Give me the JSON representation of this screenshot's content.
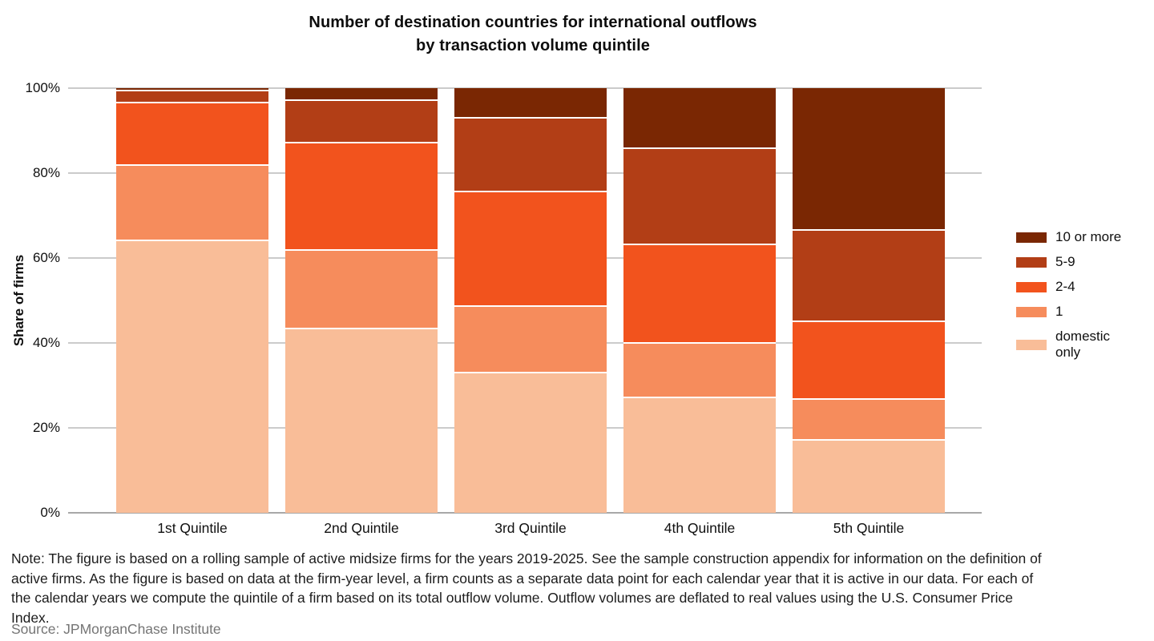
{
  "page": {
    "title_line1": "Number of destination countries for international outflows",
    "title_line2": "by transaction volume quintile",
    "note_lines": [
      "Note: The figure is based on a rolling sample of active midsize firms for the years 2019-2025. See the sample construction appendix for information on the definition of",
      "active firms. As the figure is based on data at the firm-year level, a firm counts as a separate data point for each calendar year that it is active in our data. For each of",
      "the calendar years we compute the quintile of a firm based on its total outflow volume. Outflow volumes are deflated to real values using the U.S. Consumer Price",
      "Index."
    ],
    "source": "Source: JPMorganChase Institute"
  },
  "chart_data": {
    "type": "bar",
    "stacked": true,
    "units": "percent of firms",
    "title": "Number of destination countries for international outflows by transaction volume quintile",
    "xlabel": "",
    "ylabel": "Share of firms",
    "ylim": [
      0,
      100
    ],
    "ytick_values": [
      0,
      20,
      40,
      60,
      80,
      100
    ],
    "ytick_labels": [
      "0%",
      "20%",
      "40%",
      "60%",
      "80%",
      "100%"
    ],
    "grid": true,
    "legend_position": "right",
    "categories": [
      "1st Quintile",
      "2nd Quintile",
      "3rd Quintile",
      "4th Quintile",
      "5th Quintile"
    ],
    "series": [
      {
        "name": "domestic only",
        "color": "#f9bd98",
        "values": [
          64.3,
          43.5,
          33.2,
          27.3,
          17.3
        ]
      },
      {
        "name": "1",
        "color": "#f68c5c",
        "values": [
          17.8,
          18.5,
          15.6,
          12.9,
          9.6
        ]
      },
      {
        "name": "2-4",
        "color": "#f2531d",
        "values": [
          14.6,
          25.4,
          27.1,
          23.2,
          18.3
        ]
      },
      {
        "name": "5-9",
        "color": "#b23e16",
        "values": [
          2.9,
          9.9,
          17.4,
          22.7,
          21.5
        ]
      },
      {
        "name": "10 or more",
        "color": "#7a2703",
        "values": [
          0.4,
          2.7,
          6.7,
          13.9,
          33.3
        ]
      }
    ],
    "colors": {
      "gridline": "#cbcbcb",
      "axis_line": "#a8a8a8",
      "segment_divider": "#ffffff"
    }
  }
}
